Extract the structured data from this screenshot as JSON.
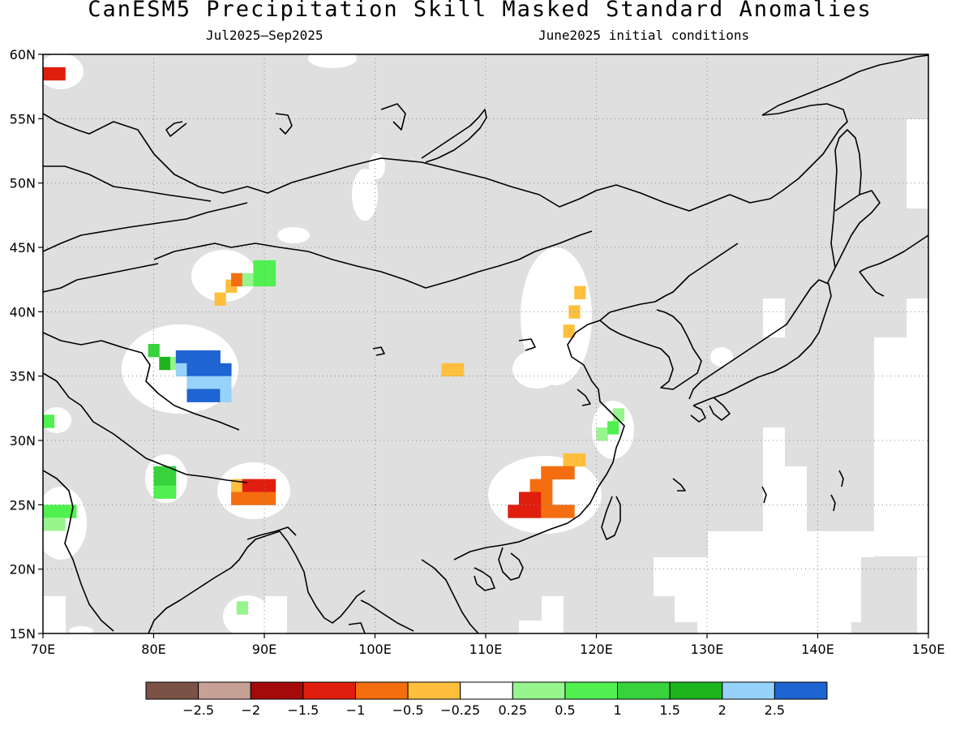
{
  "header": {
    "title": "CanESM5 Precipitation Skill Masked Standard Anomalies",
    "period": "Jul2025–Sep2025",
    "init": "June2025 initial conditions"
  },
  "chart_data": {
    "type": "heatmap",
    "title": "CanESM5 Precipitation Skill Masked Standard Anomalies",
    "subtitle_left": "Jul2025–Sep2025",
    "subtitle_right": "June2025 initial conditions",
    "xlim": [
      70,
      150
    ],
    "ylim": [
      15,
      60
    ],
    "x_ticks": [
      70,
      80,
      90,
      100,
      110,
      120,
      130,
      140,
      150
    ],
    "x_tick_labels": [
      "70E",
      "80E",
      "90E",
      "100E",
      "110E",
      "120E",
      "130E",
      "140E",
      "150E"
    ],
    "y_ticks": [
      15,
      20,
      25,
      30,
      35,
      40,
      45,
      50,
      55,
      60
    ],
    "y_tick_labels": [
      "15N",
      "20N",
      "25N",
      "30N",
      "35N",
      "40N",
      "45N",
      "50N",
      "55N",
      "60N"
    ],
    "grid": true,
    "mask_color": "#dfdfdf",
    "colorbar": {
      "colors": [
        "#7a5346",
        "#c7a096",
        "#a50a0a",
        "#e01e0e",
        "#f46e10",
        "#ffbf3c",
        "#ffffff",
        "#96f58c",
        "#50f050",
        "#37d23c",
        "#1eb41e",
        "#96d2fa",
        "#1e64d2"
      ],
      "labels": [
        "−2.5",
        "−2",
        "−1.5",
        "−1",
        "−0.5",
        "−0.25",
        "0.25",
        "0.5",
        "1",
        "1.5",
        "2",
        "2.5"
      ]
    },
    "anomaly_cells": [
      {
        "lon": 70.0,
        "lat": 58.0,
        "w": 2,
        "h": 1,
        "value": -1.25
      },
      {
        "lon": 86.5,
        "lat": 41.5,
        "w": 1,
        "h": 1,
        "value": -0.4
      },
      {
        "lon": 85.5,
        "lat": 40.5,
        "w": 1,
        "h": 1,
        "value": -0.4
      },
      {
        "lon": 87.0,
        "lat": 42.0,
        "w": 1,
        "h": 1,
        "value": -0.75
      },
      {
        "lon": 88.0,
        "lat": 42.0,
        "w": 1,
        "h": 1,
        "value": 0.4
      },
      {
        "lon": 89.0,
        "lat": 42.0,
        "w": 2,
        "h": 2,
        "value": 0.75
      },
      {
        "lon": 79.5,
        "lat": 36.5,
        "w": 1,
        "h": 1,
        "value": 1.25
      },
      {
        "lon": 80.5,
        "lat": 35.5,
        "w": 1,
        "h": 1,
        "value": 1.75
      },
      {
        "lon": 81.5,
        "lat": 35.5,
        "w": 1,
        "h": 1,
        "value": 0.4
      },
      {
        "lon": 82.0,
        "lat": 36.0,
        "w": 4,
        "h": 1,
        "value": 2.75
      },
      {
        "lon": 82.0,
        "lat": 35.0,
        "w": 1,
        "h": 1,
        "value": 2.25
      },
      {
        "lon": 83.0,
        "lat": 35.0,
        "w": 4,
        "h": 1,
        "value": 2.75
      },
      {
        "lon": 83.0,
        "lat": 34.0,
        "w": 4,
        "h": 1,
        "value": 2.25
      },
      {
        "lon": 83.0,
        "lat": 33.0,
        "w": 2,
        "h": 1,
        "value": 2.75
      },
      {
        "lon": 85.0,
        "lat": 33.0,
        "w": 1,
        "h": 1,
        "value": 2.75
      },
      {
        "lon": 86.0,
        "lat": 33.0,
        "w": 1,
        "h": 1,
        "value": 2.25
      },
      {
        "lon": 70.0,
        "lat": 31.0,
        "w": 1,
        "h": 1,
        "value": 0.75
      },
      {
        "lon": 80.0,
        "lat": 27.0,
        "w": 2,
        "h": 1,
        "value": 1.25
      },
      {
        "lon": 80.0,
        "lat": 26.0,
        "w": 2,
        "h": 1,
        "value": 1.0
      },
      {
        "lon": 80.0,
        "lat": 25.5,
        "w": 2,
        "h": 1,
        "value": 0.75
      },
      {
        "lon": 87.0,
        "lat": 26.0,
        "w": 1,
        "h": 1,
        "value": -0.4
      },
      {
        "lon": 88.0,
        "lat": 26.0,
        "w": 3,
        "h": 1,
        "value": -1.25
      },
      {
        "lon": 87.0,
        "lat": 25.0,
        "w": 4,
        "h": 1,
        "value": -0.75
      },
      {
        "lon": 70.0,
        "lat": 24.0,
        "w": 3,
        "h": 1,
        "value": 0.75
      },
      {
        "lon": 70.0,
        "lat": 23.0,
        "w": 2,
        "h": 1,
        "value": 0.4
      },
      {
        "lon": 87.5,
        "lat": 16.5,
        "w": 1,
        "h": 1,
        "value": 0.4
      },
      {
        "lon": 106.0,
        "lat": 35.0,
        "w": 2,
        "h": 1,
        "value": -0.4
      },
      {
        "lon": 118.0,
        "lat": 41.0,
        "w": 1,
        "h": 1,
        "value": -0.4
      },
      {
        "lon": 117.5,
        "lat": 39.5,
        "w": 1,
        "h": 1,
        "value": -0.4
      },
      {
        "lon": 117.0,
        "lat": 38.0,
        "w": 1,
        "h": 1,
        "value": -0.4
      },
      {
        "lon": 120.0,
        "lat": 30.0,
        "w": 1,
        "h": 1,
        "value": 0.4
      },
      {
        "lon": 121.0,
        "lat": 30.5,
        "w": 1,
        "h": 1,
        "value": 0.75
      },
      {
        "lon": 121.5,
        "lat": 31.5,
        "w": 1,
        "h": 1,
        "value": 0.4
      },
      {
        "lon": 117.0,
        "lat": 28.0,
        "w": 2,
        "h": 1,
        "value": -0.4
      },
      {
        "lon": 115.0,
        "lat": 27.0,
        "w": 3,
        "h": 1,
        "value": -0.75
      },
      {
        "lon": 114.0,
        "lat": 26.0,
        "w": 2,
        "h": 1,
        "value": -0.75
      },
      {
        "lon": 113.0,
        "lat": 25.0,
        "w": 2,
        "h": 1,
        "value": -1.25
      },
      {
        "lon": 115.0,
        "lat": 25.0,
        "w": 1,
        "h": 1,
        "value": -0.75
      },
      {
        "lon": 112.0,
        "lat": 24.0,
        "w": 3,
        "h": 1,
        "value": -1.25
      },
      {
        "lon": 115.0,
        "lat": 24.0,
        "w": 3,
        "h": 1,
        "value": -0.75
      }
    ]
  }
}
